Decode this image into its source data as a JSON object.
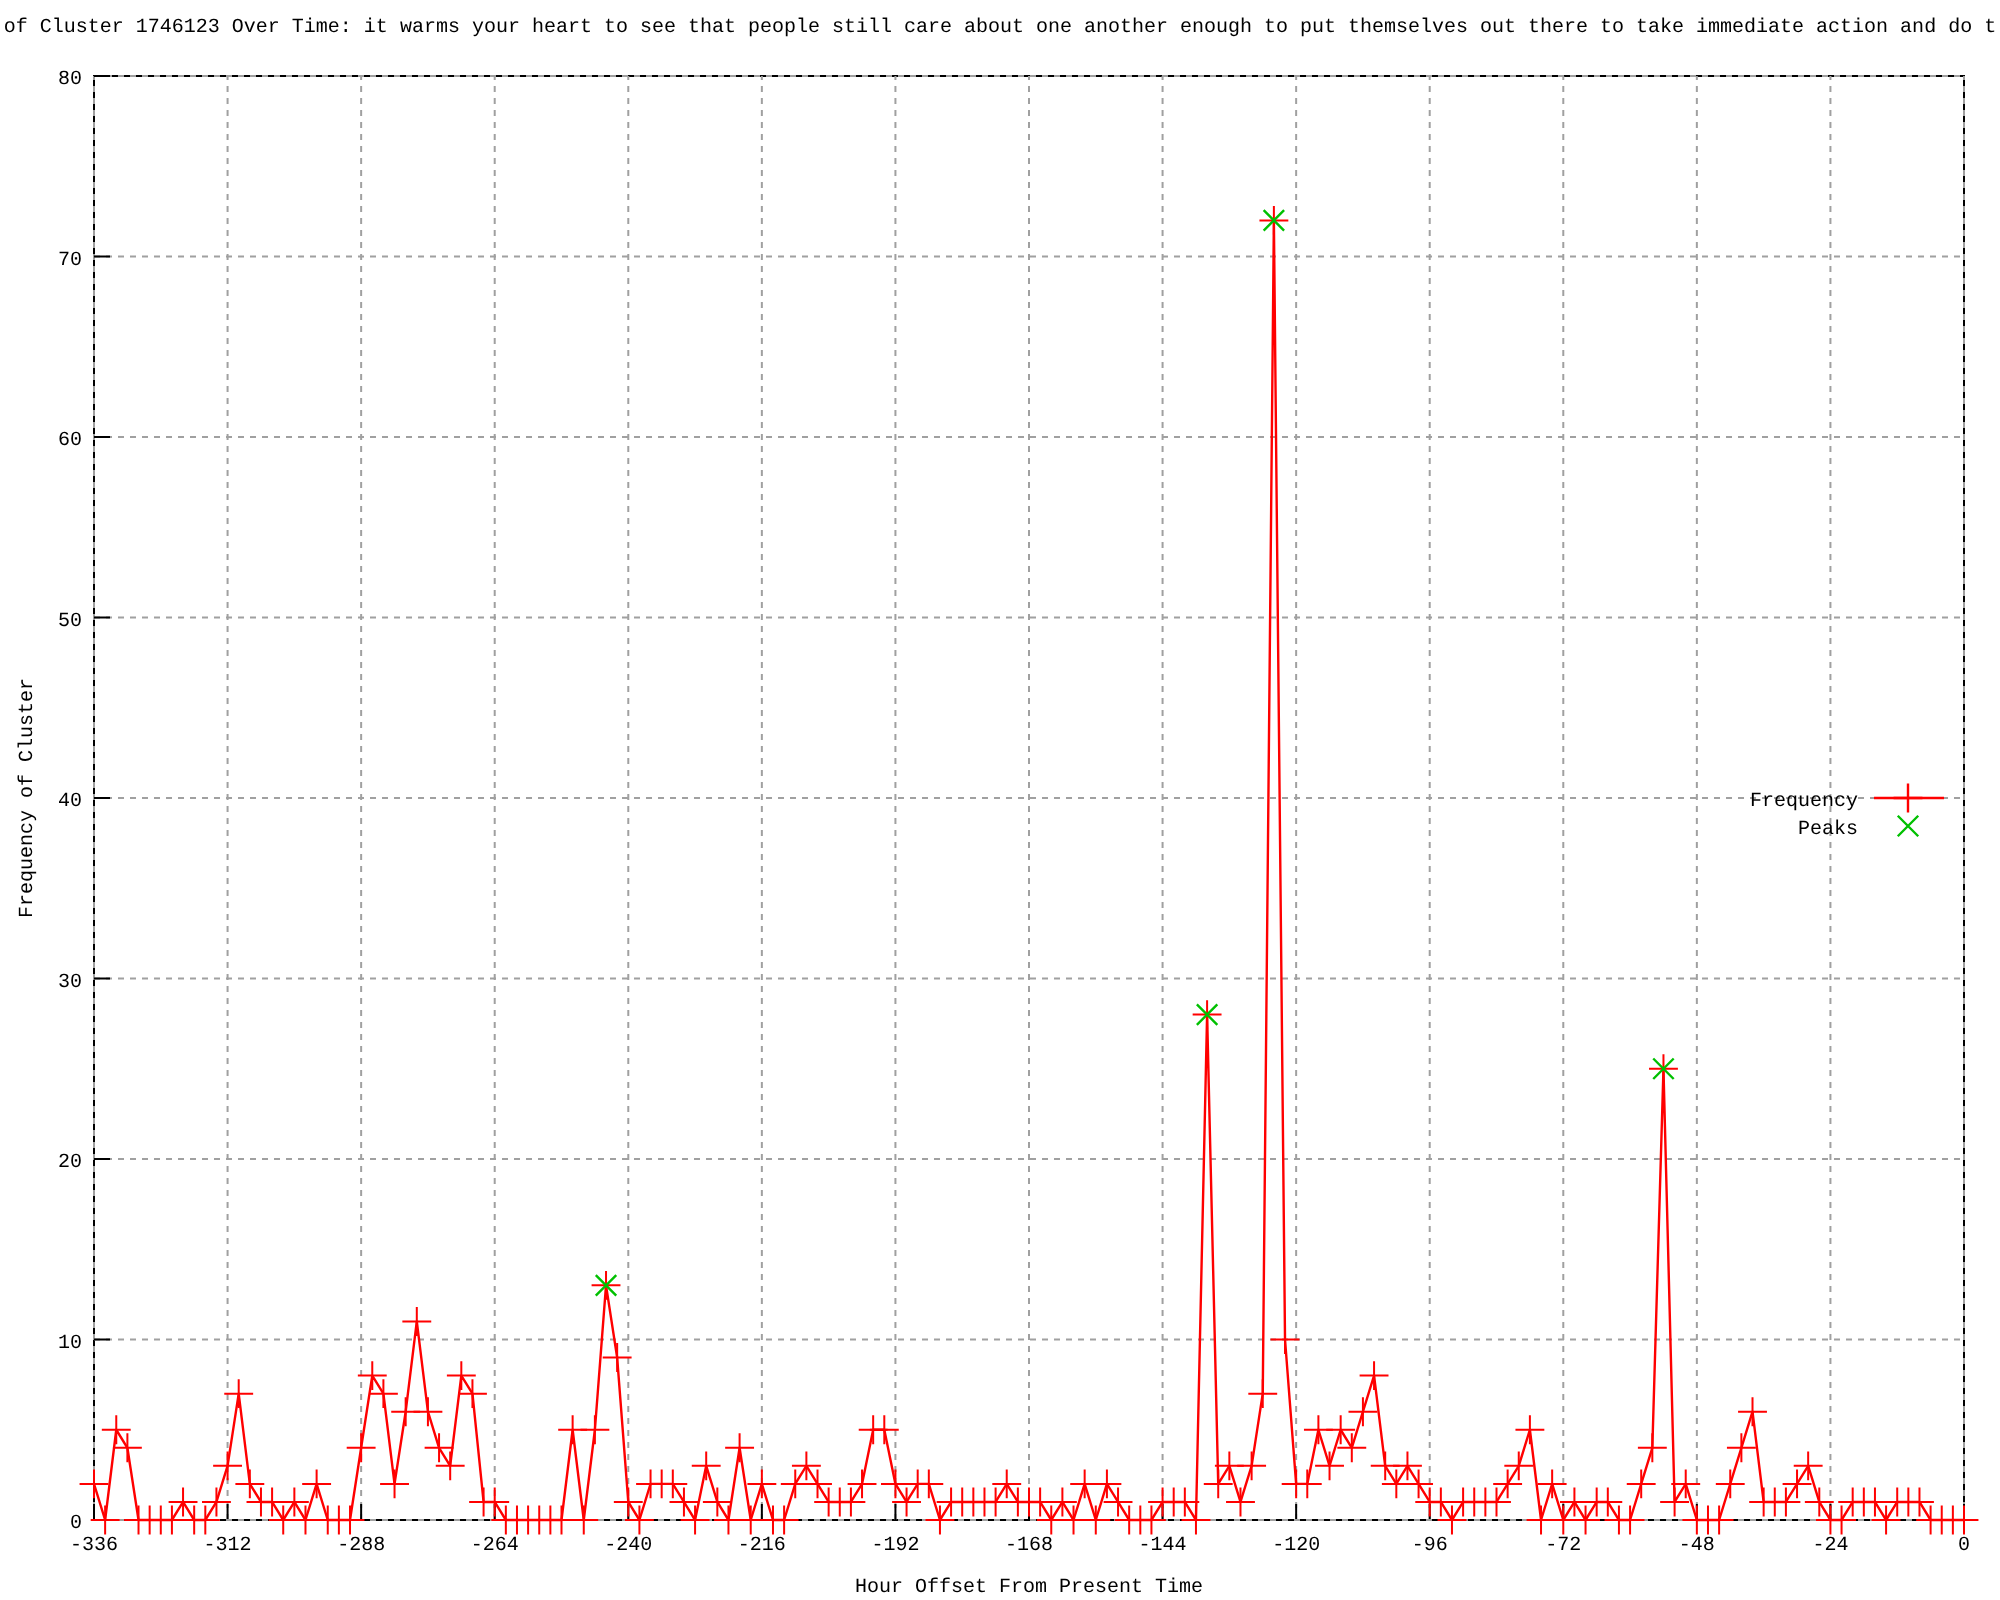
{
  "chart_data": {
    "type": "line",
    "title": "of Cluster 1746123 Over Time: it warms your heart to see that people still care about one another enough to put themselves out there to take immediate action and do t",
    "xlabel": "Hour Offset From Present Time",
    "ylabel": "Frequency of Cluster",
    "x": [
      -336,
      -334,
      -332,
      -330,
      -328,
      -326,
      -324,
      -322,
      -320,
      -318,
      -316,
      -314,
      -312,
      -310,
      -308,
      -306,
      -304,
      -302,
      -300,
      -298,
      -296,
      -294,
      -292,
      -290,
      -288,
      -286,
      -284,
      -282,
      -280,
      -278,
      -276,
      -274,
      -272,
      -270,
      -268,
      -266,
      -264,
      -262,
      -260,
      -258,
      -256,
      -254,
      -252,
      -250,
      -248,
      -246,
      -244,
      -242,
      -240,
      -238,
      -236,
      -234,
      -232,
      -230,
      -228,
      -226,
      -224,
      -222,
      -220,
      -218,
      -216,
      -214,
      -212,
      -210,
      -208,
      -206,
      -204,
      -202,
      -200,
      -198,
      -196,
      -194,
      -192,
      -190,
      -188,
      -186,
      -184,
      -182,
      -180,
      -178,
      -176,
      -174,
      -172,
      -170,
      -168,
      -166,
      -164,
      -162,
      -160,
      -158,
      -156,
      -154,
      -152,
      -150,
      -148,
      -146,
      -144,
      -142,
      -140,
      -138,
      -136,
      -134,
      -132,
      -130,
      -128,
      -126,
      -124,
      -122,
      -120,
      -118,
      -116,
      -114,
      -112,
      -110,
      -108,
      -106,
      -104,
      -102,
      -100,
      -98,
      -96,
      -94,
      -92,
      -90,
      -88,
      -86,
      -84,
      -82,
      -80,
      -78,
      -76,
      -74,
      -72,
      -70,
      -68,
      -66,
      -64,
      -62,
      -60,
      -58,
      -56,
      -54,
      -52,
      -50,
      -48,
      -46,
      -44,
      -42,
      -40,
      -38,
      -36,
      -34,
      -32,
      -30,
      -28,
      -26,
      -24,
      -22,
      -20,
      -18,
      -16,
      -14,
      -12,
      -10,
      -8,
      -6,
      -4,
      -2,
      0
    ],
    "series": [
      {
        "name": "Frequency",
        "color": "#ff0000",
        "marker": "cross",
        "values": [
          2,
          0,
          5,
          4,
          0,
          0,
          0,
          0,
          1,
          0,
          0,
          1,
          3,
          7,
          2,
          1,
          1,
          0,
          1,
          0,
          2,
          0,
          0,
          0,
          4,
          8,
          7,
          2,
          6,
          11,
          6,
          4,
          3,
          8,
          7,
          1,
          1,
          0,
          0,
          0,
          0,
          0,
          0,
          5,
          0,
          5,
          13,
          9,
          1,
          0,
          2,
          2,
          2,
          1,
          0,
          3,
          1,
          0,
          4,
          0,
          2,
          0,
          0,
          2,
          3,
          2,
          1,
          1,
          1,
          2,
          5,
          5,
          2,
          1,
          2,
          2,
          0,
          1,
          1,
          1,
          1,
          1,
          2,
          1,
          1,
          1,
          0,
          1,
          0,
          2,
          0,
          2,
          1,
          0,
          0,
          0,
          1,
          1,
          1,
          0,
          28,
          2,
          3,
          1,
          3,
          7,
          72,
          10,
          2,
          2,
          5,
          3,
          5,
          4,
          6,
          8,
          3,
          2,
          3,
          2,
          1,
          1,
          0,
          1,
          1,
          1,
          1,
          2,
          3,
          5,
          0,
          2,
          0,
          1,
          0,
          1,
          1,
          0,
          0,
          2,
          4,
          25,
          1,
          2,
          0,
          0,
          0,
          2,
          4,
          6,
          1,
          1,
          1,
          2,
          3,
          1,
          0,
          0,
          1,
          1,
          1,
          0,
          1,
          1,
          1,
          0,
          0,
          0,
          0
        ]
      },
      {
        "name": "Peaks",
        "type": "scatter",
        "color": "#00c000",
        "marker": "cross",
        "x": [
          -244,
          -136,
          -124,
          -54
        ],
        "values": [
          13,
          28,
          72,
          25
        ]
      }
    ],
    "xlim": [
      -336,
      0
    ],
    "xticks": [
      -336,
      -312,
      -288,
      -264,
      -240,
      -216,
      -192,
      -168,
      -144,
      -120,
      -96,
      -72,
      -48,
      -24,
      0
    ],
    "ylim": [
      0,
      80
    ],
    "yticks": [
      0,
      10,
      20,
      30,
      40,
      50,
      60,
      70,
      80
    ],
    "grid": true,
    "legend": "right"
  }
}
